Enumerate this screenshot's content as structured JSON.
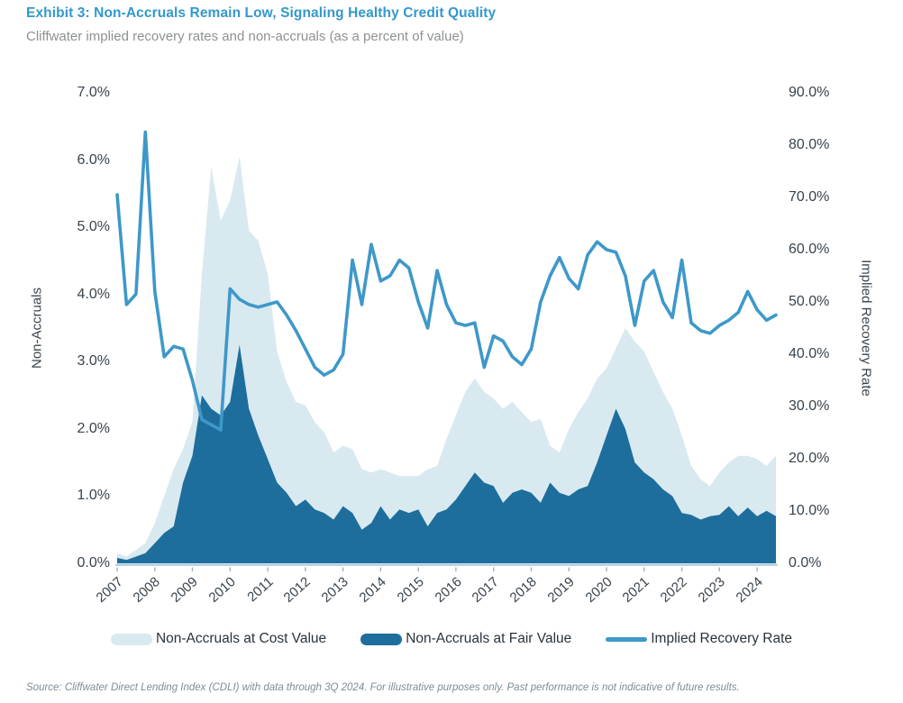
{
  "header": {
    "title": "Exhibit 3: Non-Accruals Remain Low, Signaling Healthy Credit Quality",
    "subtitle": "Cliffwater implied recovery rates and non-accruals (as a percent of value)"
  },
  "chart_data": {
    "type": "area",
    "frequency": "quarterly",
    "x_start": "2007 Q1",
    "x_end": "2024 Q3",
    "x_year_ticks": [
      "2007",
      "2008",
      "2009",
      "2010",
      "2011",
      "2012",
      "2013",
      "2014",
      "2015",
      "2016",
      "2017",
      "2018",
      "2019",
      "2020",
      "2021",
      "2022",
      "2023",
      "2024"
    ],
    "left_axis": {
      "title": "Non-Accruals",
      "min": 0,
      "max": 7,
      "tick_values": [
        0,
        1,
        2,
        3,
        4,
        5,
        6,
        7
      ],
      "tick_labels": [
        "0.0%",
        "1.0%",
        "2.0%",
        "3.0%",
        "4.0%",
        "5.0%",
        "6.0%",
        "7.0%"
      ]
    },
    "right_axis": {
      "title": "Implied Recovery Rate",
      "min": 0,
      "max": 90,
      "tick_values": [
        0,
        10,
        20,
        30,
        40,
        50,
        60,
        70,
        80,
        90
      ],
      "tick_labels": [
        "0.0%",
        "10.0%",
        "20.0%",
        "30.0%",
        "40.0%",
        "50.0%",
        "60.0%",
        "70.0%",
        "80.0%",
        "90.0%"
      ]
    },
    "grid": false,
    "legend_position": "bottom",
    "series": [
      {
        "name": "Non-Accruals at Cost Value",
        "type": "area",
        "axis": "left",
        "color": "#d9e9f0",
        "values": [
          0.15,
          0.1,
          0.2,
          0.3,
          0.6,
          1.0,
          1.4,
          1.7,
          2.1,
          4.3,
          5.9,
          5.1,
          5.4,
          6.05,
          4.95,
          4.8,
          4.3,
          3.15,
          2.7,
          2.4,
          2.35,
          2.1,
          1.95,
          1.65,
          1.75,
          1.7,
          1.4,
          1.35,
          1.4,
          1.35,
          1.3,
          1.3,
          1.3,
          1.4,
          1.45,
          1.85,
          2.2,
          2.55,
          2.75,
          2.55,
          2.45,
          2.3,
          2.4,
          2.25,
          2.1,
          2.15,
          1.75,
          1.65,
          2.0,
          2.25,
          2.45,
          2.75,
          2.9,
          3.2,
          3.5,
          3.3,
          3.15,
          2.85,
          2.55,
          2.3,
          1.9,
          1.45,
          1.25,
          1.15,
          1.35,
          1.5,
          1.6,
          1.6,
          1.55,
          1.45,
          1.6
        ]
      },
      {
        "name": "Non-Accruals at Fair Value",
        "type": "area",
        "axis": "left",
        "color": "#1d6e9c",
        "values": [
          0.08,
          0.05,
          0.1,
          0.15,
          0.3,
          0.45,
          0.55,
          1.2,
          1.6,
          2.5,
          2.3,
          2.2,
          2.4,
          3.25,
          2.3,
          1.9,
          1.55,
          1.2,
          1.05,
          0.85,
          0.95,
          0.8,
          0.75,
          0.65,
          0.85,
          0.75,
          0.5,
          0.6,
          0.85,
          0.65,
          0.8,
          0.75,
          0.8,
          0.55,
          0.75,
          0.8,
          0.95,
          1.15,
          1.35,
          1.2,
          1.15,
          0.9,
          1.05,
          1.1,
          1.05,
          0.9,
          1.2,
          1.05,
          1.0,
          1.1,
          1.15,
          1.5,
          1.9,
          2.3,
          2.0,
          1.5,
          1.35,
          1.25,
          1.1,
          1.0,
          0.75,
          0.72,
          0.65,
          0.7,
          0.72,
          0.85,
          0.7,
          0.83,
          0.7,
          0.78,
          0.7
        ]
      },
      {
        "name": "Implied Recovery Rate",
        "type": "line",
        "axis": "right",
        "color": "#3e98c9",
        "values": [
          70.5,
          49.5,
          51.5,
          82.5,
          52.0,
          39.5,
          41.5,
          41.0,
          35.0,
          27.5,
          26.5,
          25.5,
          52.5,
          50.5,
          49.5,
          49.0,
          49.5,
          50.0,
          47.5,
          44.5,
          41.0,
          37.5,
          36.0,
          37.0,
          40.0,
          58.0,
          49.5,
          61.0,
          54.0,
          55.0,
          58.0,
          56.5,
          50.0,
          45.0,
          56.0,
          49.5,
          46.0,
          45.5,
          46.0,
          37.5,
          43.5,
          42.5,
          39.5,
          38.0,
          41.0,
          50.0,
          55.0,
          58.5,
          54.5,
          52.5,
          59.0,
          61.5,
          60.0,
          59.5,
          55.0,
          45.5,
          54.0,
          56.0,
          50.0,
          47.0,
          58.0,
          46.0,
          44.5,
          44.0,
          45.5,
          46.5,
          48.0,
          52.0,
          48.5,
          46.5,
          47.5
        ]
      }
    ]
  },
  "legend": {
    "items": [
      {
        "label": "Non-Accruals at Cost Value",
        "color": "#d9e9f0",
        "swatch": "area"
      },
      {
        "label": "Non-Accruals at Fair Value",
        "color": "#1d6e9c",
        "swatch": "area"
      },
      {
        "label": "Implied Recovery Rate",
        "color": "#3e98c9",
        "swatch": "line"
      }
    ]
  },
  "footer": {
    "source": "Source: Cliffwater Direct Lending Index (CDLI) with data through 3Q 2024. For illustrative purposes only. Past performance is not indicative of future results."
  }
}
